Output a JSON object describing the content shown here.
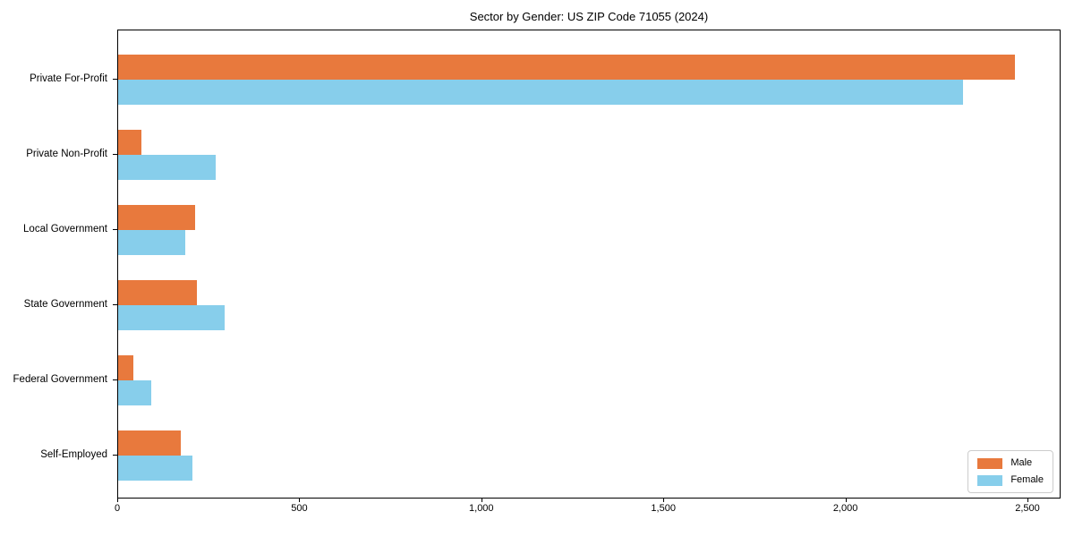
{
  "chart_data": {
    "type": "bar",
    "orientation": "horizontal",
    "title": "Sector by Gender: US ZIP Code 71055 (2024)",
    "categories": [
      "Private For-Profit",
      "Private Non-Profit",
      "Local Government",
      "State Government",
      "Federal Government",
      "Self-Employed"
    ],
    "series": [
      {
        "name": "Male",
        "color": "#e8793d",
        "values": [
          2468,
          63,
          212,
          216,
          43,
          172
        ]
      },
      {
        "name": "Female",
        "color": "#87ceeb",
        "values": [
          2326,
          268,
          184,
          293,
          90,
          205
        ]
      }
    ],
    "xlim": [
      0,
      2591
    ],
    "x_ticks": [
      0,
      500,
      1000,
      1500,
      2000,
      2500
    ],
    "x_tick_labels": [
      "0",
      "500",
      "1,000",
      "1,500",
      "2,000",
      "2,500"
    ],
    "xlabel": "",
    "ylabel": "",
    "grid": false,
    "legend": {
      "position": "lower right",
      "entries": [
        "Male",
        "Female"
      ]
    }
  }
}
